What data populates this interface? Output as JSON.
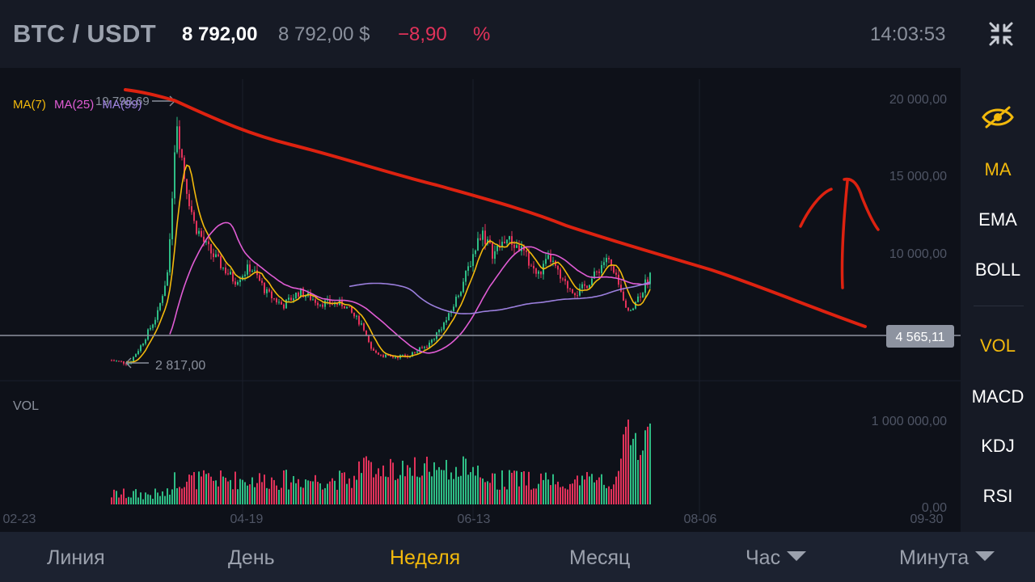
{
  "header": {
    "pair": "BTC / USDT",
    "price": "8 792,00",
    "price_usd": "8 792,00 $",
    "change": "−8,90",
    "change_percent": "%",
    "time": "14:03:53",
    "fullscreen_icon": "collapse-icon"
  },
  "colors": {
    "background": "#0e1119",
    "panel": "#161a25",
    "bullish": "#2ebd85",
    "bearish": "#e2325a",
    "ma7": "#f2b90c",
    "ma25": "#e05cd4",
    "ma99": "#9b7fdd",
    "accent": "#f2b90c",
    "drawing": "#dd2210"
  },
  "chart": {
    "ma_legend": {
      "ma7": "MA(7)",
      "ma25": "MA(25)",
      "ma99": "MA(99)"
    },
    "high_label": "19 798,69",
    "low_label": "2 817,00",
    "current_level": "4 565,11",
    "y_axis_labels": [
      "20 000,00",
      "15 000,00",
      "10 000,00"
    ],
    "volume_label": "VOL",
    "volume_axis_labels": [
      "1 000 000,00",
      "0,00"
    ],
    "x_axis_labels": [
      "02-23",
      "04-19",
      "06-13",
      "08-06",
      "09-30"
    ]
  },
  "chart_data": {
    "type": "candlestick",
    "y_axis_ticks": [
      20000,
      15000,
      10000
    ],
    "volume_axis_ticks": [
      1000000,
      0
    ],
    "x_ticks": [
      "02-23",
      "04-19",
      "06-13",
      "08-06",
      "09-30"
    ],
    "high": 19798.69,
    "low": 2817.0,
    "current_level": 4565.11,
    "last_price": 8792.0,
    "indicators": [
      "MA(7)",
      "MA(25)",
      "MA(99)"
    ]
  },
  "sidebar": {
    "eye_icon": "eye-icon",
    "items": [
      "MA",
      "EMA",
      "BOLL",
      "VOL",
      "MACD",
      "KDJ",
      "RSI"
    ]
  },
  "tabs": {
    "line": "Линия",
    "day": "День",
    "week": "Неделя",
    "month": "Месяц",
    "hour": "Час",
    "minute": "Минута"
  }
}
